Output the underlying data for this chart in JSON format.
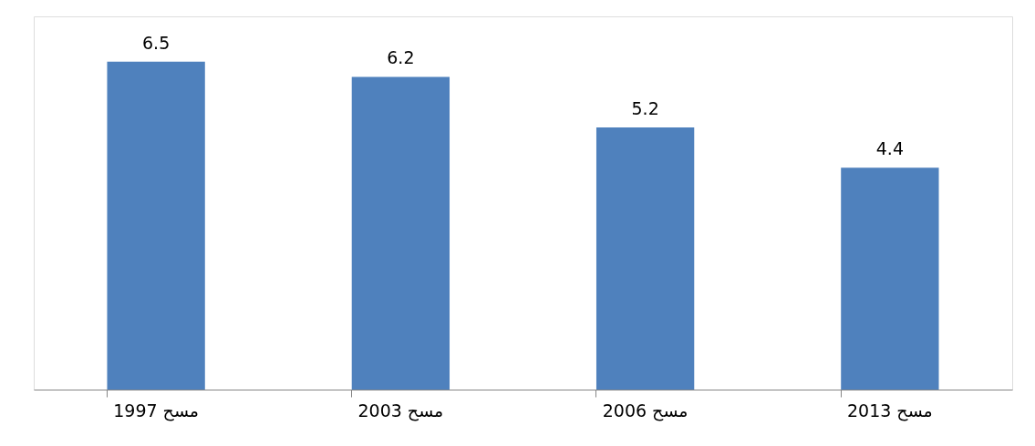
{
  "chart_data": {
    "type": "bar",
    "categories": [
      "مسح 1997",
      "مسح 2003",
      "مسح 2006",
      "مسح 2013"
    ],
    "values": [
      6.5,
      6.2,
      5.2,
      4.4
    ],
    "color": "#4f81bd",
    "ylim": [
      0,
      7.4
    ],
    "data_labels": true,
    "grid": false
  }
}
